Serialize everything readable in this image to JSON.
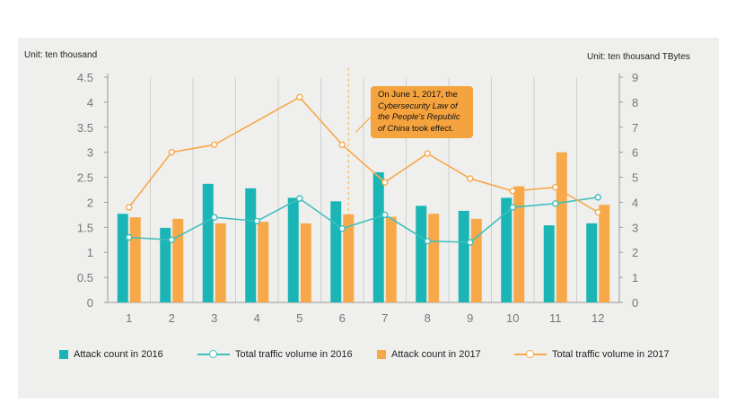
{
  "chart_data": {
    "type": "bar",
    "categories": [
      "1",
      "2",
      "3",
      "4",
      "5",
      "6",
      "7",
      "8",
      "9",
      "10",
      "11",
      "12"
    ],
    "x_tick_labels": [
      "1",
      "2",
      "3",
      "4",
      "5",
      "6",
      "7",
      "8",
      "9",
      "10",
      "11",
      "12"
    ],
    "left_axis": {
      "unit_label": "Unit: ten thousand",
      "ylim": [
        0,
        4.5
      ],
      "ticks": [
        "0",
        "0.5",
        "1",
        "1.5",
        "2",
        "2.5",
        "3",
        "3.5",
        "4",
        "4.5"
      ]
    },
    "right_axis": {
      "unit_label": "Unit: ten thousand TBytes",
      "ylim": [
        0,
        9
      ],
      "ticks": [
        "0",
        "1",
        "2",
        "3",
        "4",
        "5",
        "6",
        "7",
        "8",
        "9"
      ]
    },
    "series": [
      {
        "name": "Attack count in 2016",
        "type": "bar",
        "axis": "left",
        "color": "#1cb5b5",
        "values": [
          1.77,
          1.49,
          2.37,
          2.28,
          2.09,
          2.02,
          2.6,
          1.93,
          1.83,
          2.09,
          1.54,
          1.58
        ]
      },
      {
        "name": "Total traffic volume in 2016",
        "type": "line",
        "axis": "right",
        "color": "#3fbfbe",
        "values": [
          2.6,
          2.5,
          3.4,
          3.25,
          4.15,
          2.95,
          3.5,
          2.45,
          2.4,
          3.8,
          3.95,
          4.2
        ]
      },
      {
        "name": "Attack count in 2017",
        "type": "bar",
        "axis": "left",
        "color": "#f7a94a",
        "values": [
          1.7,
          1.67,
          1.58,
          1.61,
          1.58,
          1.76,
          1.71,
          1.77,
          1.67,
          2.32,
          3.0,
          1.95
        ]
      },
      {
        "name": "Total traffic volume in 2017",
        "type": "line",
        "axis": "right",
        "color": "#f7a94a",
        "values": [
          3.8,
          6.0,
          6.3,
          null,
          8.2,
          6.3,
          4.8,
          5.95,
          4.95,
          4.45,
          4.6,
          3.6
        ]
      }
    ],
    "grid": "vertical",
    "legend_position": "bottom",
    "annotation": {
      "text_parts": [
        "On June 1, 2017, the ",
        "Cybersecurity Law of the People's Republic of China",
        " took effect."
      ],
      "anchor_category": "6"
    }
  },
  "legend": {
    "items": [
      {
        "label": "Attack count in 2016"
      },
      {
        "label": "Total traffic volume in 2016"
      },
      {
        "label": "Attack count in 2017"
      },
      {
        "label": "Total traffic volume in 2017"
      }
    ]
  },
  "colors": {
    "teal": "#1cb5b5",
    "orange": "#f7a94a",
    "panel": "#efefed",
    "axis": "#999999"
  }
}
